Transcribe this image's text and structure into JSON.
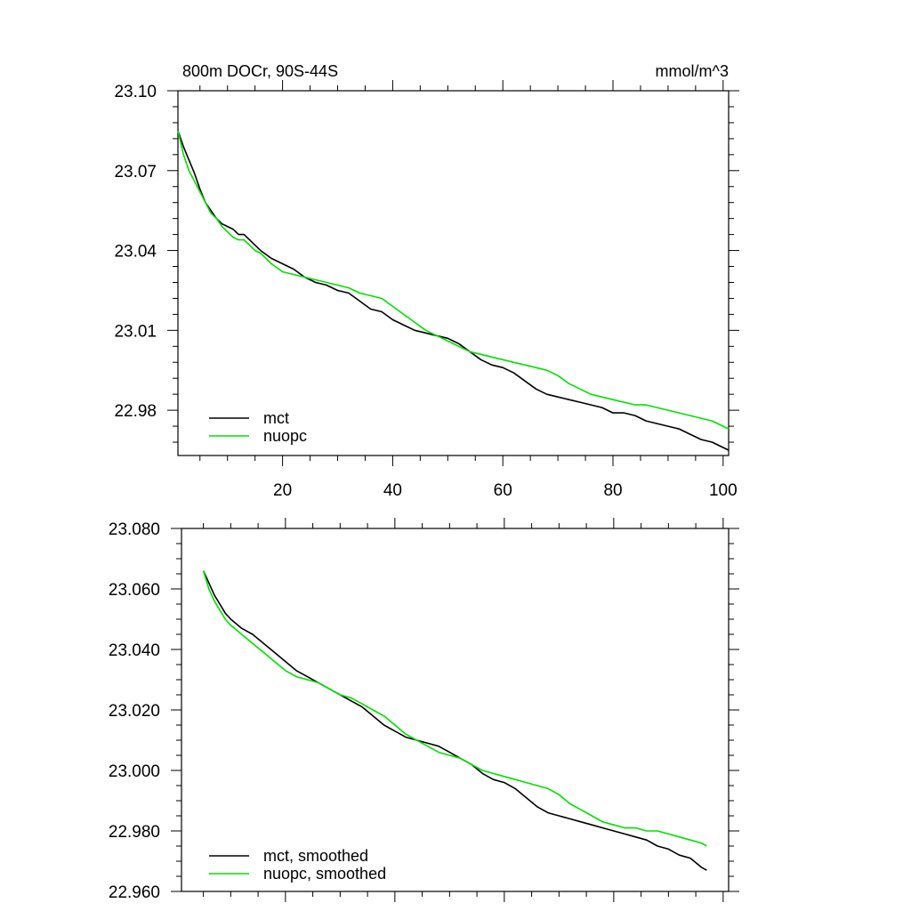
{
  "colors": {
    "mct": "#000000",
    "nuopc": "#00e000"
  },
  "chart_data": [
    {
      "type": "line",
      "title": "800m DOCr, 90S-44S",
      "units": "mmol/m^3",
      "xlim": [
        1,
        101
      ],
      "ylim": [
        22.963,
        23.1
      ],
      "x_ticks": [
        20,
        40,
        60,
        80,
        100
      ],
      "x_tick_labels": [
        "20",
        "40",
        "60",
        "80",
        "100"
      ],
      "y_ticks": [
        22.98,
        23.01,
        23.04,
        23.07,
        23.1
      ],
      "y_tick_labels": [
        "22.98",
        "23.01",
        "23.04",
        "23.07",
        "23.10"
      ],
      "grid": false,
      "legend": "bottom-left",
      "series": [
        {
          "name": "mct",
          "color": "#000000",
          "x": [
            1,
            2,
            3,
            4,
            5,
            6,
            7,
            8,
            9,
            10,
            11,
            12,
            13,
            14,
            15,
            16,
            18,
            20,
            22,
            24,
            26,
            28,
            30,
            32,
            34,
            36,
            38,
            40,
            42,
            44,
            46,
            48,
            50,
            52,
            54,
            56,
            58,
            60,
            62,
            64,
            66,
            68,
            70,
            72,
            74,
            76,
            78,
            80,
            82,
            84,
            86,
            88,
            90,
            92,
            94,
            96,
            98,
            100,
            101
          ],
          "y": [
            23.085,
            23.079,
            23.074,
            23.069,
            23.063,
            23.058,
            23.055,
            23.052,
            23.05,
            23.049,
            23.048,
            23.046,
            23.046,
            23.044,
            23.042,
            23.04,
            23.037,
            23.035,
            23.033,
            23.03,
            23.028,
            23.027,
            23.025,
            23.024,
            23.021,
            23.018,
            23.017,
            23.014,
            23.012,
            23.01,
            23.009,
            23.008,
            23.007,
            23.005,
            23.002,
            22.999,
            22.997,
            22.996,
            22.994,
            22.991,
            22.988,
            22.986,
            22.985,
            22.984,
            22.983,
            22.982,
            22.981,
            22.979,
            22.979,
            22.978,
            22.976,
            22.975,
            22.974,
            22.973,
            22.971,
            22.969,
            22.968,
            22.966,
            22.965
          ]
        },
        {
          "name": "nuopc",
          "color": "#00e000",
          "x": [
            1,
            2,
            3,
            4,
            5,
            6,
            7,
            8,
            9,
            10,
            11,
            12,
            13,
            14,
            15,
            16,
            18,
            20,
            22,
            24,
            26,
            28,
            30,
            32,
            34,
            36,
            38,
            40,
            42,
            44,
            46,
            48,
            50,
            52,
            54,
            56,
            58,
            60,
            62,
            64,
            66,
            68,
            70,
            72,
            74,
            76,
            78,
            80,
            82,
            84,
            86,
            88,
            90,
            92,
            94,
            96,
            98,
            100,
            101
          ],
          "y": [
            23.085,
            23.076,
            23.07,
            23.066,
            23.062,
            23.058,
            23.054,
            23.052,
            23.049,
            23.047,
            23.045,
            23.044,
            23.044,
            23.042,
            23.04,
            23.039,
            23.035,
            23.032,
            23.031,
            23.03,
            23.029,
            23.028,
            23.027,
            23.026,
            23.024,
            23.023,
            23.022,
            23.019,
            23.016,
            23.013,
            23.01,
            23.008,
            23.006,
            23.004,
            23.002,
            23.001,
            23.0,
            22.999,
            22.998,
            22.997,
            22.996,
            22.995,
            22.993,
            22.99,
            22.988,
            22.986,
            22.985,
            22.984,
            22.983,
            22.982,
            22.982,
            22.981,
            22.98,
            22.979,
            22.978,
            22.977,
            22.976,
            22.974,
            22.973
          ]
        }
      ]
    },
    {
      "type": "line",
      "xlim": [
        1,
        101
      ],
      "ylim": [
        22.96,
        23.08
      ],
      "x_ticks": [
        20,
        40,
        60,
        80,
        100
      ],
      "y_ticks": [
        22.96,
        22.98,
        23.0,
        23.02,
        23.04,
        23.06,
        23.08
      ],
      "y_tick_labels": [
        "22.960",
        "22.980",
        "23.000",
        "23.020",
        "23.040",
        "23.060",
        "23.080"
      ],
      "grid": false,
      "legend": "bottom-left",
      "series": [
        {
          "name": "mct, smoothed",
          "color": "#000000",
          "x": [
            5,
            6,
            7,
            8,
            9,
            10,
            12,
            14,
            16,
            18,
            20,
            22,
            24,
            26,
            28,
            30,
            32,
            34,
            36,
            38,
            40,
            42,
            44,
            46,
            48,
            50,
            52,
            54,
            56,
            58,
            60,
            62,
            64,
            66,
            68,
            70,
            72,
            74,
            76,
            78,
            80,
            82,
            84,
            86,
            88,
            90,
            92,
            94,
            96,
            97
          ],
          "y": [
            23.066,
            23.062,
            23.058,
            23.055,
            23.052,
            23.05,
            23.047,
            23.045,
            23.042,
            23.039,
            23.036,
            23.033,
            23.031,
            23.029,
            23.027,
            23.025,
            23.023,
            23.021,
            23.018,
            23.015,
            23.013,
            23.011,
            23.01,
            23.009,
            23.008,
            23.006,
            23.004,
            23.002,
            22.999,
            22.997,
            22.996,
            22.994,
            22.991,
            22.988,
            22.986,
            22.985,
            22.984,
            22.983,
            22.982,
            22.981,
            22.98,
            22.979,
            22.978,
            22.977,
            22.975,
            22.974,
            22.972,
            22.971,
            22.968,
            22.967
          ]
        },
        {
          "name": "nuopc, smoothed",
          "color": "#00e000",
          "x": [
            5,
            6,
            7,
            8,
            9,
            10,
            12,
            14,
            16,
            18,
            20,
            22,
            24,
            26,
            28,
            30,
            32,
            34,
            36,
            38,
            40,
            42,
            44,
            46,
            48,
            50,
            52,
            54,
            56,
            58,
            60,
            62,
            64,
            66,
            68,
            70,
            72,
            74,
            76,
            78,
            80,
            82,
            84,
            86,
            88,
            90,
            92,
            94,
            96,
            97
          ],
          "y": [
            23.066,
            23.06,
            23.056,
            23.053,
            23.05,
            23.048,
            23.045,
            23.042,
            23.039,
            23.036,
            23.033,
            23.031,
            23.03,
            23.029,
            23.027,
            23.025,
            23.024,
            23.022,
            23.02,
            23.018,
            23.015,
            23.012,
            23.01,
            23.008,
            23.006,
            23.005,
            23.004,
            23.002,
            23.0,
            22.999,
            22.998,
            22.997,
            22.996,
            22.995,
            22.994,
            22.992,
            22.989,
            22.987,
            22.985,
            22.983,
            22.982,
            22.981,
            22.981,
            22.98,
            22.98,
            22.979,
            22.978,
            22.977,
            22.976,
            22.975
          ]
        }
      ]
    }
  ]
}
